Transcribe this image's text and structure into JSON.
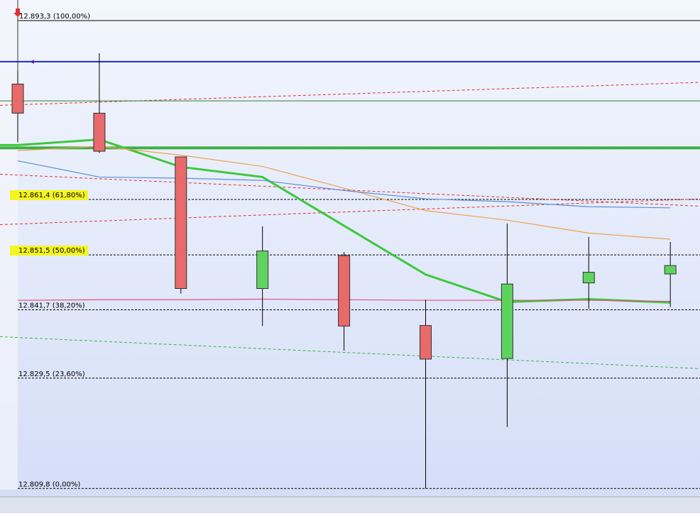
{
  "chart_data": {
    "type": "candlestick",
    "ylim": [
      12805.4,
      12897.0
    ],
    "up_color": "#5fd35f",
    "down_color": "#e86a6a",
    "candles": [
      {
        "open": 12882.0,
        "high": 12884.3,
        "low": 12871.6,
        "close": 12876.8
      },
      {
        "open": 12876.8,
        "high": 12887.5,
        "low": 12869.7,
        "close": 12870.0
      },
      {
        "open": 12869.0,
        "high": 12869.0,
        "low": 12844.6,
        "close": 12845.5
      },
      {
        "open": 12845.5,
        "high": 12856.6,
        "low": 12838.8,
        "close": 12852.2
      },
      {
        "open": 12851.4,
        "high": 12852.0,
        "low": 12834.4,
        "close": 12838.8
      },
      {
        "open": 12838.9,
        "high": 12843.5,
        "low": 12809.8,
        "close": 12832.9
      },
      {
        "open": 12833.0,
        "high": 12857.1,
        "low": 12820.8,
        "close": 12846.3
      },
      {
        "open": 12846.5,
        "high": 12854.7,
        "low": 12841.9,
        "close": 12848.4
      },
      {
        "open": 12848.1,
        "high": 12853.8,
        "low": 12842.2,
        "close": 12849.6
      }
    ],
    "series": [
      {
        "color": "#3cc83c",
        "width": 3,
        "values": [
          12871.1,
          12872.1,
          12867.2,
          12865.4,
          12856.7,
          12848.0,
          12843.1,
          12843.6,
          12843.0
        ]
      },
      {
        "color": "#f0a050",
        "width": 1.2,
        "values": [
          12870.1,
          12870.9,
          12869.3,
          12867.3,
          12863.4,
          12859.4,
          12857.7,
          12855.4,
          12854.3
        ]
      },
      {
        "color": "#5b8fd8",
        "width": 1.2,
        "values": [
          12868.3,
          12865.4,
          12865.2,
          12864.8,
          12863.0,
          12861.5,
          12861.0,
          12860.1,
          12859.9
        ]
      },
      {
        "color": "#e0507a",
        "width": 1.2,
        "values": [
          12843.4,
          12843.5,
          12843.5,
          12843.6,
          12843.5,
          12843.4,
          12843.4,
          12843.4,
          12843.2
        ]
      }
    ],
    "hlines": [
      {
        "value": 12886.0,
        "color": "#1a2fc0",
        "width": 2
      },
      {
        "value": 12879.0,
        "color": "#2e7d32",
        "width": 1
      },
      {
        "value": 12870.6,
        "color": "#3cb043",
        "width": 4
      }
    ],
    "trendlines": [
      {
        "values": [
          12878.2,
          12882.3
        ],
        "color": "#e03030"
      },
      {
        "values": [
          12865.9,
          12860.2
        ],
        "color": "#e03030"
      },
      {
        "values": [
          12856.9,
          12861.5
        ],
        "color": "#e03030"
      },
      {
        "values": [
          12836.9,
          12831.2
        ],
        "color": "#40b040"
      }
    ],
    "levels": [
      {
        "value": 12893.3,
        "label": "12.893,3 (100,00%)",
        "highlight": false
      },
      {
        "value": 12861.4,
        "label": "12.861,4 (61,80%)",
        "highlight": true
      },
      {
        "value": 12851.5,
        "label": "12.851,5 (50,00%)",
        "highlight": true
      },
      {
        "value": 12841.7,
        "label": "12.841,7 (38,20%)",
        "highlight": false
      },
      {
        "value": 12829.5,
        "label": "12.829,5 (23,60%)",
        "highlight": false
      },
      {
        "value": 12809.8,
        "label": "12.809,8 (0,00%)",
        "highlight": false
      }
    ]
  }
}
